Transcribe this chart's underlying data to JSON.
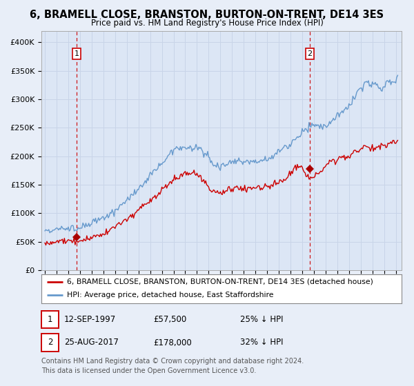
{
  "title": "6, BRAMELL CLOSE, BRANSTON, BURTON-ON-TRENT, DE14 3ES",
  "subtitle": "Price paid vs. HM Land Registry's House Price Index (HPI)",
  "background_color": "#e8eef8",
  "plot_bg_color": "#dce6f5",
  "grid_color": "#c8d4e8",
  "ylabel_ticks": [
    "£0",
    "£50K",
    "£100K",
    "£150K",
    "£200K",
    "£250K",
    "£300K",
    "£350K",
    "£400K"
  ],
  "ytick_values": [
    0,
    50000,
    100000,
    150000,
    200000,
    250000,
    300000,
    350000,
    400000
  ],
  "ylim": [
    0,
    420000
  ],
  "sale1_date": 1997.71,
  "sale1_price": 57500,
  "sale2_date": 2017.65,
  "sale2_price": 178000,
  "label1_date": "12-SEP-1997",
  "label1_price": "£57,500",
  "label1_hpi": "25% ↓ HPI",
  "label2_date": "25-AUG-2017",
  "label2_price": "£178,000",
  "label2_hpi": "32% ↓ HPI",
  "legend_line1": "6, BRAMELL CLOSE, BRANSTON, BURTON-ON-TRENT, DE14 3ES (detached house)",
  "legend_line2": "HPI: Average price, detached house, East Staffordshire",
  "footnote1": "Contains HM Land Registry data © Crown copyright and database right 2024.",
  "footnote2": "This data is licensed under the Open Government Licence v3.0.",
  "red_color": "#cc0000",
  "blue_color": "#6699cc",
  "marker_red": "#aa0000"
}
